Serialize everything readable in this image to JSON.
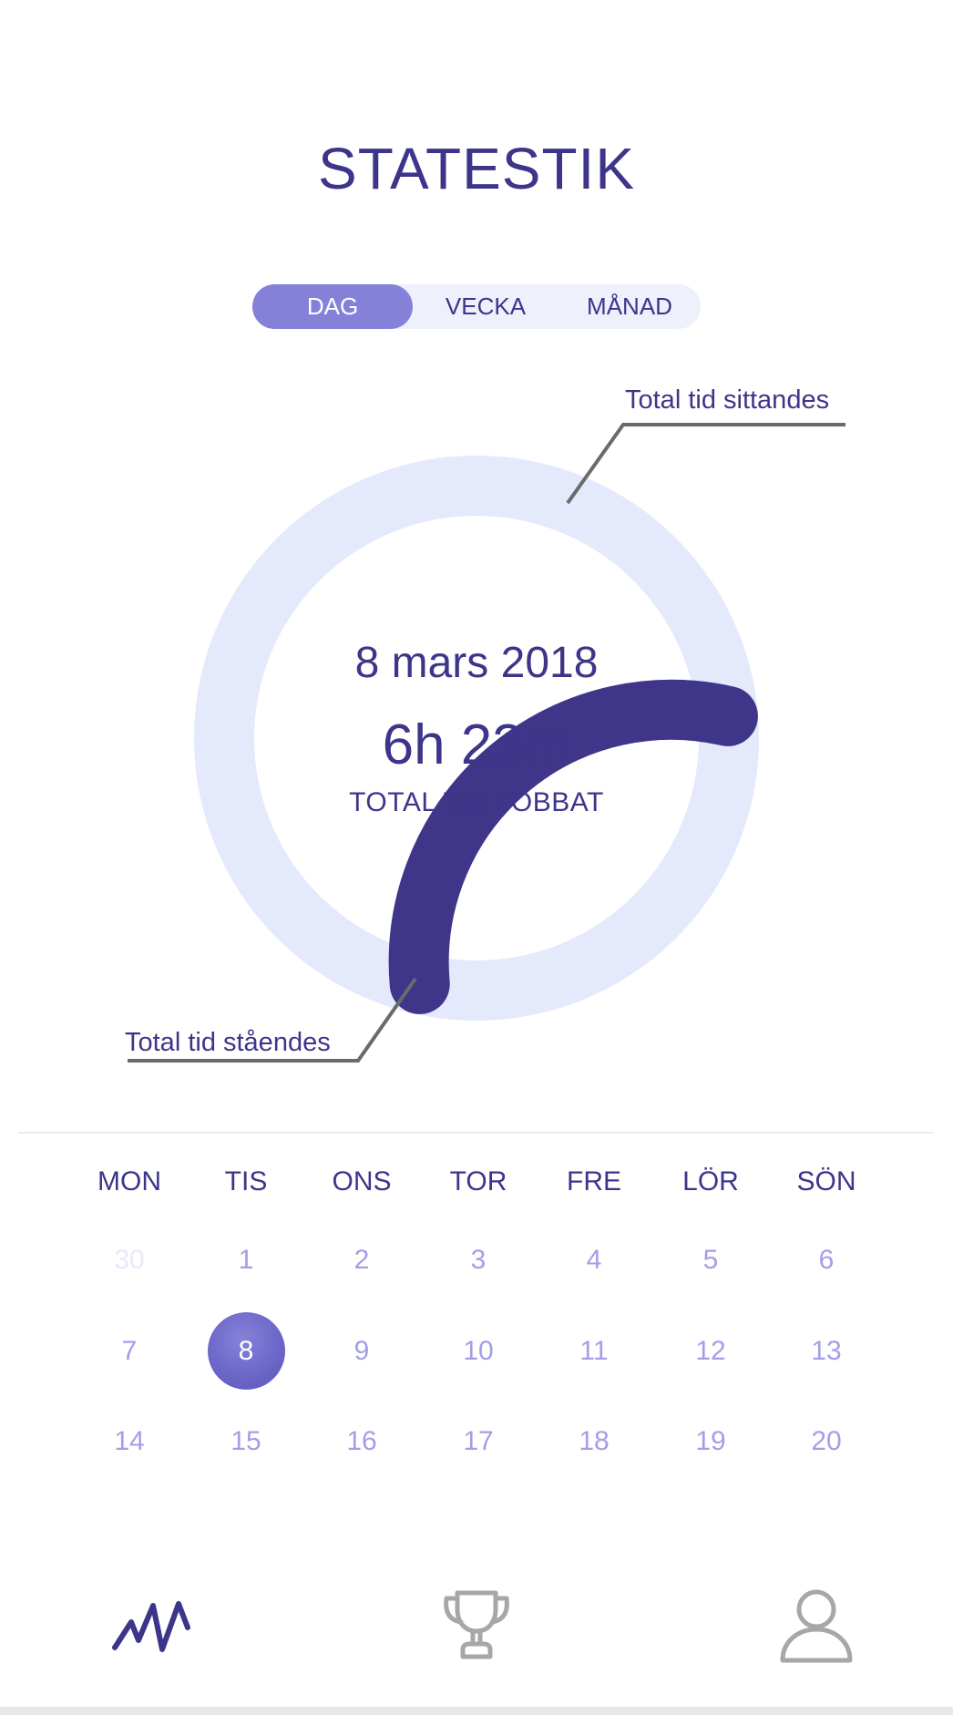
{
  "header": {
    "title": "STATESTIK"
  },
  "period_tabs": [
    {
      "label": "DAG",
      "active": true
    },
    {
      "label": "VECKA",
      "active": false
    },
    {
      "label": "MÅNAD",
      "active": false
    }
  ],
  "summary": {
    "date": "8 mars 2018",
    "total_time": "6h 23m",
    "total_caption": "TOTAL TID JOBBAT",
    "standing_fraction": 0.3,
    "sitting_label": "Total tid sittandes",
    "standing_label": "Total tid ståendes"
  },
  "colors": {
    "accent": "#3d358a",
    "ring_standing": "#3f368a",
    "ring_sitting": "#e4e9fb",
    "tab_active": "#8581d8",
    "day_text": "#a49ee8"
  },
  "calendar": {
    "weekdays": [
      "MON",
      "TIS",
      "ONS",
      "TOR",
      "FRE",
      "LÖR",
      "SÖN"
    ],
    "weeks": [
      [
        "30",
        "1",
        "2",
        "3",
        "4",
        "5",
        "6"
      ],
      [
        "7",
        "8",
        "9",
        "10",
        "11",
        "12",
        "13"
      ],
      [
        "14",
        "15",
        "16",
        "17",
        "18",
        "19",
        "20"
      ]
    ],
    "selected_day": "8"
  },
  "bottom_nav": [
    {
      "icon": "activity-icon",
      "active": true
    },
    {
      "icon": "trophy-icon",
      "active": false
    },
    {
      "icon": "profile-icon",
      "active": false
    }
  ]
}
